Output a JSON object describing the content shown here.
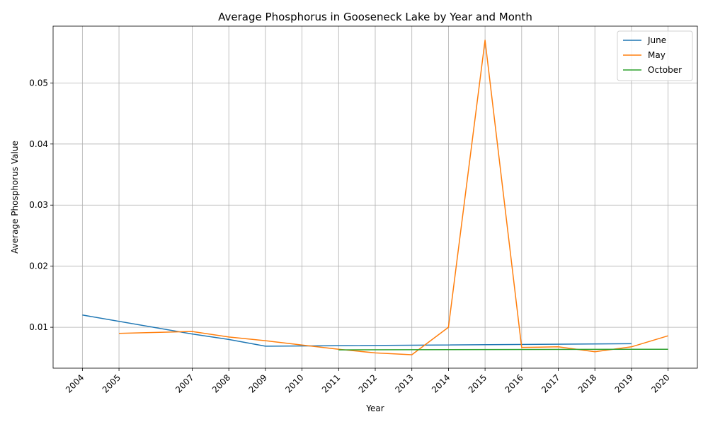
{
  "chart_data": {
    "type": "line",
    "title": "Average Phosphorus in Gooseneck Lake by Year and Month",
    "xlabel": "Year",
    "ylabel": "Average Phosphorus Value",
    "x_ticks": [
      "2004",
      "2005",
      "2007",
      "2008",
      "2009",
      "2010",
      "2011",
      "2012",
      "2013",
      "2014",
      "2015",
      "2016",
      "2017",
      "2018",
      "2019",
      "2020"
    ],
    "x_tick_positions": [
      2004,
      2005,
      2007,
      2008,
      2009,
      2010,
      2011,
      2012,
      2013,
      2014,
      2015,
      2016,
      2017,
      2018,
      2019,
      2020
    ],
    "xlim": [
      2003.2,
      2020.8
    ],
    "ylim": [
      0.0033,
      0.0593
    ],
    "y_ticks": [
      0.01,
      0.02,
      0.03,
      0.04,
      0.05
    ],
    "y_tick_labels": [
      "0.01",
      "0.02",
      "0.03",
      "0.04",
      "0.05"
    ],
    "grid": true,
    "legend_position": "top-right",
    "series": [
      {
        "name": "June",
        "color": "#1f77b4",
        "points": [
          [
            2004,
            0.012
          ],
          [
            2007,
            0.0089
          ],
          [
            2008,
            0.008
          ],
          [
            2009,
            0.0069
          ],
          [
            2019,
            0.0073
          ]
        ]
      },
      {
        "name": "May",
        "color": "#ff7f0e",
        "points": [
          [
            2005,
            0.009
          ],
          [
            2007,
            0.0093
          ],
          [
            2008,
            0.0084
          ],
          [
            2009,
            0.0078
          ],
          [
            2010,
            0.0071
          ],
          [
            2011,
            0.0064
          ],
          [
            2012,
            0.0058
          ],
          [
            2013,
            0.0055
          ],
          [
            2014,
            0.01
          ],
          [
            2015,
            0.057
          ],
          [
            2016,
            0.0067
          ],
          [
            2017,
            0.0068
          ],
          [
            2018,
            0.006
          ],
          [
            2019,
            0.0068
          ],
          [
            2020,
            0.0086
          ]
        ]
      },
      {
        "name": "October",
        "color": "#2ca02c",
        "points": [
          [
            2011,
            0.0063
          ],
          [
            2020,
            0.0064
          ]
        ]
      }
    ]
  }
}
